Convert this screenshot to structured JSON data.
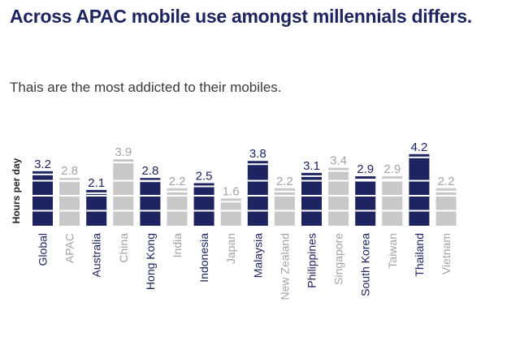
{
  "colors": {
    "highlight": "#1e2460",
    "muted": "#c8c8c8",
    "title": "#1e2460",
    "muted_text": "#a3a3a3"
  },
  "header": {
    "title": "Across APAC mobile use amongst millennials differs.",
    "subtitle": "Thais are the most addicted to their mobiles."
  },
  "chart_data": {
    "type": "bar",
    "categories": [
      "Global",
      "APAC",
      "Australia",
      "China",
      "Hong Kong",
      "India",
      "Indonesia",
      "Japan",
      "Malaysia",
      "New Zealand",
      "Philippines",
      "Singapore",
      "South Korea",
      "Taiwan",
      "Thailand",
      "Vietnam"
    ],
    "values": [
      3.2,
      2.8,
      2.1,
      3.9,
      2.8,
      2.2,
      2.5,
      1.6,
      3.8,
      2.2,
      3.1,
      3.4,
      2.9,
      2.9,
      4.2,
      2.2
    ],
    "highlighted": [
      true,
      false,
      true,
      false,
      true,
      false,
      true,
      false,
      true,
      false,
      true,
      false,
      true,
      false,
      true,
      false
    ],
    "ylabel": "Hours per day",
    "ylim": [
      0,
      4.6
    ],
    "grid": false,
    "legend": "none"
  }
}
